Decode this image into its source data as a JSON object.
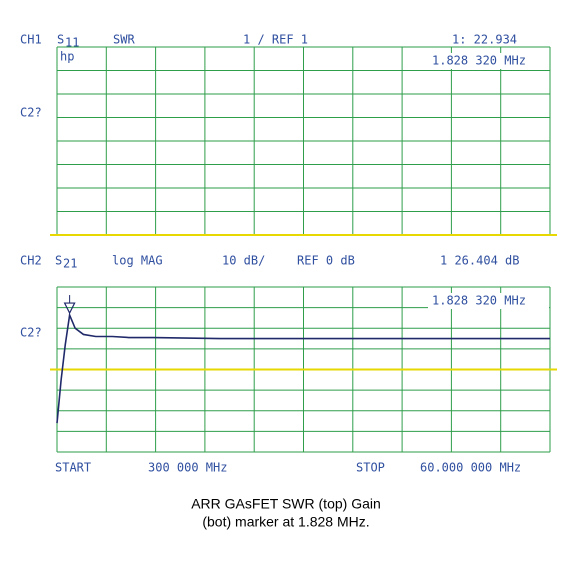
{
  "chart_data": [
    {
      "type": "line",
      "channel": "CH1",
      "parameter": "S",
      "parameter_sub": "11",
      "format": "SWR",
      "reference": "1  /  REF 1",
      "marker_readout": "1: 22.934",
      "marker_frequency": "1.828 320 MHz",
      "side_label": "C2?",
      "logo": "hp",
      "grid_divisions": [
        10,
        8
      ]
    },
    {
      "type": "line",
      "channel": "CH2",
      "parameter": "S",
      "parameter_sub": "21",
      "format": "log MAG",
      "scale": "10 dB/",
      "reference": "REF 0 dB",
      "marker_readout": "1  26.404 dB",
      "marker_frequency": "1.828 320 MHz",
      "side_label": "C2?",
      "grid_divisions": [
        10,
        8
      ],
      "start_label": "START",
      "start_value": "300 000 MHz",
      "stop_label": "STOP",
      "stop_value": "60.000 000 MHz",
      "xlim": [
        0.3,
        60
      ],
      "ylim": [
        -40,
        40
      ],
      "reference_value": 0,
      "x": [
        0.3,
        0.8,
        1.3,
        1.828,
        2.5,
        3.5,
        5,
        7,
        9,
        12,
        20,
        30,
        40,
        50,
        60
      ],
      "series": [
        {
          "name": "S21",
          "color": "#202a6a",
          "values": [
            -26,
            -5,
            12,
            26.404,
            20,
            17,
            16,
            16,
            15.5,
            15.5,
            15,
            15,
            15,
            15,
            15
          ]
        }
      ],
      "marker_index": 3
    }
  ],
  "caption": [
    "ARR GAsFET SWR (top) Gain",
    "(bot) marker at 1.828 MHz."
  ]
}
